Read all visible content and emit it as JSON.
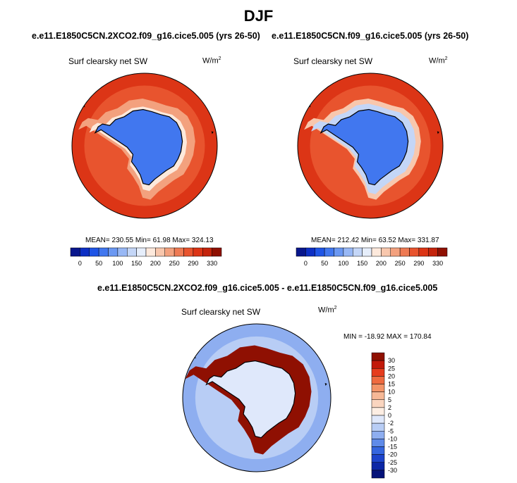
{
  "main_title": "DJF",
  "panels": [
    {
      "title": "e.e11.E1850C5CN.2XCO2.f09_g16.cice5.005 (yrs 26-50)",
      "variable": "Surf clearsky net SW",
      "unit_base": "W/m",
      "unit_exp": "2",
      "stats": "MEAN= 230.55  Min=  61.98  Max= 324.13"
    },
    {
      "title": "e.e11.E1850C5CN.f09_g16.cice5.005 (yrs 26-50)",
      "variable": "Surf clearsky net SW",
      "unit_base": "W/m",
      "unit_exp": "2",
      "stats": "MEAN= 212.42  Min=  63.52  Max= 331.87"
    },
    {
      "title": "e.e11.E1850C5CN.2XCO2.f09_g16.cice5.005 - e.e11.E1850C5CN.f09_g16.cice5.005",
      "variable": "Surf clearsky net SW",
      "unit_base": "W/m",
      "unit_exp": "2",
      "stats": "MIN = -18.92 MAX = 170.84"
    }
  ],
  "chart_data": [
    {
      "type": "heatmap",
      "projection": "south-polar-stereographic",
      "title": "e.e11.E1850C5CN.2XCO2.f09_g16.cice5.005 (yrs 26-50)",
      "variable": "Surf clearsky net SW",
      "units": "W/m2",
      "mean": 230.55,
      "min": 61.98,
      "max": 324.13,
      "colorbar": {
        "orientation": "horizontal",
        "tick_labels": [
          "0",
          "50",
          "100",
          "150",
          "200",
          "250",
          "290",
          "330"
        ],
        "colors": [
          "#08168c",
          "#0d2fc4",
          "#1f55e6",
          "#4177ef",
          "#6b98f2",
          "#98b8f5",
          "#c4d6f7",
          "#e6eefb",
          "#fde9dc",
          "#f8c7ad",
          "#f3a17e",
          "#ee7a53",
          "#e8542e",
          "#dc3516",
          "#c4240c",
          "#8f1002"
        ]
      },
      "regions": [
        {
          "name": "ocean-far",
          "level_index": 13
        },
        {
          "name": "ocean-near",
          "level_index": 12
        },
        {
          "name": "sea-ice-edge",
          "level_index": 10
        },
        {
          "name": "coastal-band",
          "level_index": 8
        },
        {
          "name": "continent",
          "level_index": 3
        }
      ]
    },
    {
      "type": "heatmap",
      "projection": "south-polar-stereographic",
      "title": "e.e11.E1850C5CN.f09_g16.cice5.005 (yrs 26-50)",
      "variable": "Surf clearsky net SW",
      "units": "W/m2",
      "mean": 212.42,
      "min": 63.52,
      "max": 331.87,
      "colorbar": {
        "orientation": "horizontal",
        "tick_labels": [
          "0",
          "50",
          "100",
          "150",
          "200",
          "250",
          "290",
          "330"
        ],
        "colors": [
          "#08168c",
          "#0d2fc4",
          "#1f55e6",
          "#4177ef",
          "#6b98f2",
          "#98b8f5",
          "#c4d6f7",
          "#e6eefb",
          "#fde9dc",
          "#f8c7ad",
          "#f3a17e",
          "#ee7a53",
          "#e8542e",
          "#dc3516",
          "#c4240c",
          "#8f1002"
        ]
      },
      "regions": [
        {
          "name": "ocean-far",
          "level_index": 13
        },
        {
          "name": "ocean-near",
          "level_index": 12
        },
        {
          "name": "sea-ice-edge",
          "level_index": 9
        },
        {
          "name": "sea-ice",
          "level_index": 6
        },
        {
          "name": "continent",
          "level_index": 3
        }
      ]
    },
    {
      "type": "heatmap",
      "projection": "south-polar-stereographic",
      "title": "e.e11.E1850C5CN.2XCO2.f09_g16.cice5.005 - e.e11.E1850C5CN.f09_g16.cice5.005",
      "variable": "Surf clearsky net SW",
      "units": "W/m2",
      "min": -18.92,
      "max": 170.84,
      "colorbar": {
        "orientation": "vertical",
        "tick_labels": [
          "30",
          "25",
          "20",
          "15",
          "10",
          "5",
          "2",
          "0",
          "-2",
          "-5",
          "-10",
          "-15",
          "-20",
          "-25",
          "-30"
        ],
        "colors": [
          "#8f1002",
          "#c21a0a",
          "#e63c1d",
          "#ef6a3f",
          "#f39468",
          "#f6b896",
          "#fad5bf",
          "#fdeee3",
          "#dfe8fb",
          "#b8cdf5",
          "#8eaef0",
          "#5f8be9",
          "#3566df",
          "#1d44cc",
          "#0c27a6",
          "#05137a"
        ]
      },
      "regions": [
        {
          "name": "ocean-far",
          "level_index": 10
        },
        {
          "name": "ocean-near",
          "level_index": 9
        },
        {
          "name": "sea-ice-band",
          "level_index": 0
        },
        {
          "name": "continent",
          "level_index": 8
        }
      ]
    }
  ]
}
